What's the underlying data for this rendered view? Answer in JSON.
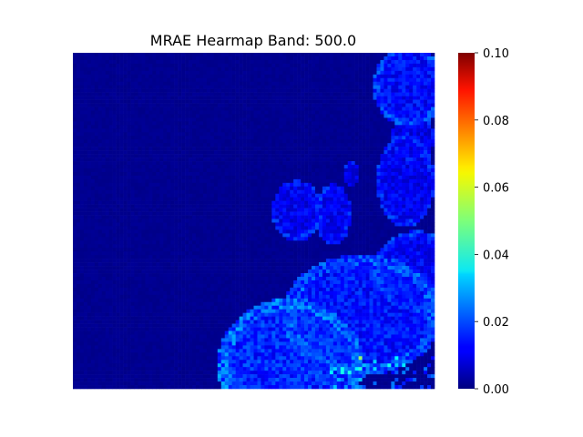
{
  "chart_data": {
    "type": "heatmap",
    "title": "MRAE Hearmap Band: 500.0",
    "xlabel": "",
    "ylabel": "",
    "colormap": "jet",
    "colorbar": {
      "min": 0.0,
      "max": 0.1,
      "ticks": [
        "0.00",
        "0.02",
        "0.04",
        "0.06",
        "0.08",
        "0.10"
      ]
    },
    "axes_visible": false,
    "description_regions": [
      {
        "region": "background",
        "value_range": [
          0.0,
          0.004
        ]
      },
      {
        "region": "right-edge cells",
        "value_range": [
          0.008,
          0.022
        ]
      },
      {
        "region": "small central blob",
        "value_range": [
          0.008,
          0.02
        ]
      },
      {
        "region": "bottom-right large blob",
        "value_range": [
          0.01,
          0.03
        ]
      }
    ]
  }
}
